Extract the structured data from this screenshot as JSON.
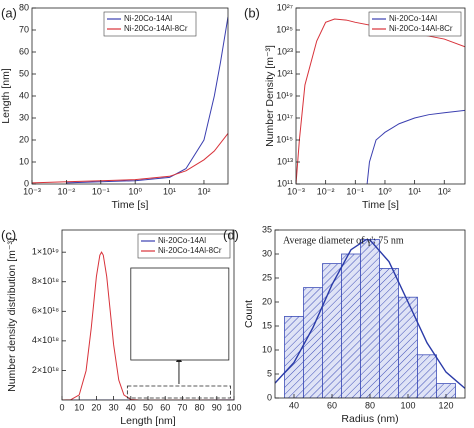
{
  "chart_data": [
    {
      "type": "line",
      "panel_label": "(a)",
      "xlabel": "Time [s]",
      "ylabel": "Length [nm]",
      "xlog": true,
      "xlim": [
        0.001,
        500
      ],
      "xticks": [
        {
          "value": 0.001,
          "label": "10⁻³"
        },
        {
          "value": 0.01,
          "label": "10⁻²"
        },
        {
          "value": 0.1,
          "label": "10⁻¹"
        },
        {
          "value": 1,
          "label": "10⁰"
        },
        {
          "value": 10,
          "label": "10¹"
        },
        {
          "value": 100,
          "label": "10²"
        }
      ],
      "ylim": [
        0,
        80
      ],
      "yticks": [
        0,
        10,
        20,
        30,
        40,
        50,
        60,
        70,
        80
      ],
      "legend": "upper center",
      "series": [
        {
          "name": "Ni-20Co-14Al",
          "color": "#3b3fb0",
          "x": [
            0.01,
            0.1,
            1,
            10,
            30,
            100,
            200,
            300,
            500
          ],
          "values": [
            0.5,
            1,
            1.5,
            3,
            7,
            20,
            40,
            55,
            76
          ]
        },
        {
          "name": "Ni-20Co-14Al-8Cr",
          "color": "#d8323a",
          "x": [
            0.001,
            0.01,
            0.1,
            1,
            10,
            30,
            100,
            200,
            500
          ],
          "values": [
            0.5,
            1,
            1.5,
            2,
            3.5,
            6,
            11,
            15,
            23
          ]
        }
      ]
    },
    {
      "type": "line",
      "panel_label": "(b)",
      "xlabel": "Time [s]",
      "ylabel": "Number Density [m⁻³]",
      "xlog": true,
      "ylog": true,
      "xlim": [
        0.001,
        500
      ],
      "xticks": [
        {
          "value": 0.001,
          "label": "10⁻³"
        },
        {
          "value": 0.01,
          "label": "10⁻²"
        },
        {
          "value": 0.1,
          "label": "10⁻¹"
        },
        {
          "value": 1,
          "label": "10⁰"
        },
        {
          "value": 10,
          "label": "10¹"
        },
        {
          "value": 100,
          "label": "10²"
        }
      ],
      "ylim": [
        100000000000.0,
        1e+27
      ],
      "yticks": [
        {
          "value": 100000000000.0,
          "label": "10¹¹"
        },
        {
          "value": 10000000000000.0,
          "label": "10¹³"
        },
        {
          "value": 1000000000000000.0,
          "label": "10¹⁵"
        },
        {
          "value": 1e+17,
          "label": "10¹⁷"
        },
        {
          "value": 1e+19,
          "label": "10¹⁹"
        },
        {
          "value": 1e+21,
          "label": "10²¹"
        },
        {
          "value": 1e+23,
          "label": "10²³"
        },
        {
          "value": 1e+25,
          "label": "10²⁵"
        },
        {
          "value": 1e+27,
          "label": "10²⁷"
        }
      ],
      "legend": "upper right",
      "series": [
        {
          "name": "Ni-20Co-14Al",
          "color": "#3b3fb0",
          "x": [
            0.25,
            0.3,
            0.5,
            1,
            3,
            10,
            30,
            100,
            500
          ],
          "values": [
            100000000000.0,
            10000000000000.0,
            1000000000000000.0,
            5000000000000000.0,
            3e+16,
            1e+17,
            2e+17,
            3e+17,
            5e+17
          ]
        },
        {
          "name": "Ni-20Co-14Al-8Cr",
          "color": "#d8323a",
          "x": [
            0.001,
            0.0013,
            0.002,
            0.005,
            0.01,
            0.02,
            0.05,
            0.1,
            1,
            10,
            100,
            500
          ],
          "values": [
            100000000000.0,
            1000000000000000.0,
            1e+20,
            1e+24,
            5e+25,
            1e+26,
            8e+25,
            5e+25,
            1.5e+25,
            5e+24,
            1.5e+24,
            3e+23
          ]
        }
      ]
    },
    {
      "type": "line",
      "panel_label": "(c)",
      "xlabel": "Length [nm]",
      "ylabel": "Number density distribution [m⁻³]",
      "xlim": [
        0,
        100
      ],
      "xticks": [
        0,
        10,
        20,
        30,
        40,
        50,
        60,
        70,
        80,
        90,
        100
      ],
      "ylim": [
        0,
        1.15e+19
      ],
      "yticks": [
        {
          "value": 2e+18,
          "label": "2×10¹⁸"
        },
        {
          "value": 4e+18,
          "label": "4×10¹⁸"
        },
        {
          "value": 6e+18,
          "label": "6×10¹⁸"
        },
        {
          "value": 8e+18,
          "label": "8×10¹⁸"
        },
        {
          "value": 1e+19,
          "label": "1×10¹⁹"
        }
      ],
      "legend": "upper right",
      "series": [
        {
          "name": "Ni-20Co-14Al",
          "color": "#3b3fb0",
          "x": [
            0,
            20,
            40,
            60,
            80,
            100
          ],
          "values": [
            0,
            0,
            0,
            1000000000000000.0,
            3000000000000000.0,
            5000000000000000.0
          ]
        },
        {
          "name": "Ni-20Co-14Al-8Cr",
          "color": "#d8323a",
          "x": [
            0,
            5,
            10,
            14,
            17,
            20,
            22,
            23,
            24,
            26,
            28,
            30,
            33,
            36,
            40,
            45,
            60,
            100
          ],
          "values": [
            0,
            1.5e+16,
            3.4e+17,
            1.98e+18,
            4.87e+18,
            8.35e+18,
            9.8e+18,
            1e+19,
            9.8e+18,
            8.35e+18,
            6.07e+18,
            3.75e+18,
            1.35e+18,
            3.4e+17,
            3.1e+16,
            0,
            0,
            0
          ]
        }
      ]
    },
    {
      "type": "histogram",
      "panel_label": "(d)",
      "xlabel": "Radius (nm)",
      "ylabel": "Count",
      "annotation": "Average diameter of γ': 75 nm",
      "xlim": [
        30,
        130
      ],
      "xticks": [
        40,
        60,
        80,
        100,
        120
      ],
      "ylim": [
        0,
        35
      ],
      "yticks": [
        0,
        5,
        10,
        15,
        20,
        25,
        30,
        35
      ],
      "bins": [
        35,
        45,
        55,
        65,
        75,
        85,
        95,
        105,
        115,
        125
      ],
      "counts": [
        17,
        23,
        28,
        30,
        33,
        27,
        21,
        9,
        3
      ],
      "color": "#3f4fb8",
      "series": [
        {
          "color": "#2a3aa8",
          "x": [
            30,
            40,
            50,
            60,
            70,
            78,
            80,
            90,
            100,
            110,
            120,
            130
          ],
          "values": [
            3.1,
            7.4,
            14.7,
            23.6,
            30.9,
            33,
            32.9,
            28.4,
            20,
            11.5,
            5.4,
            2
          ]
        }
      ]
    }
  ]
}
